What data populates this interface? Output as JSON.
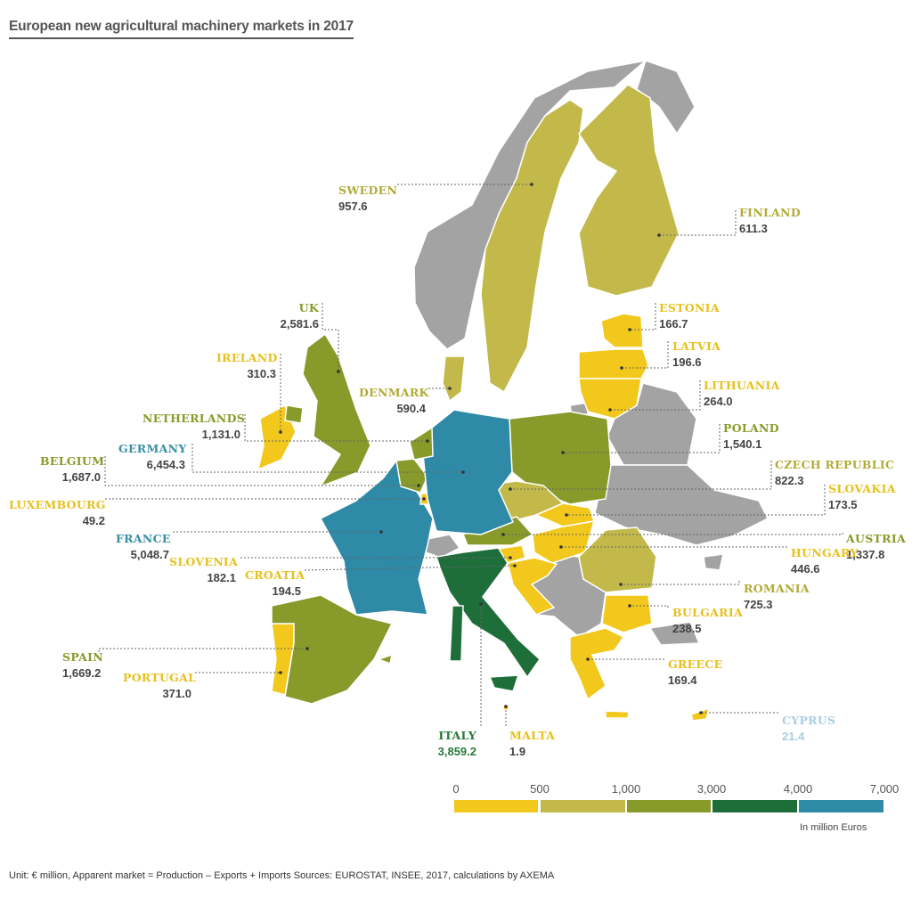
{
  "title": "European new agricultural machinery markets in 2017",
  "colors": {
    "0-500": "#f2c81c",
    "500-1000": "#c2b94a",
    "1000-3000": "#879a2a",
    "3000-4000": "#1e6e3a",
    "4000-7000": "#2e8aa6",
    "no-data": "#a3a3a3"
  },
  "countries": [
    {
      "name": "SWEDEN",
      "value": "957.6",
      "band": "500-1000"
    },
    {
      "name": "FINLAND",
      "value": "611.3",
      "band": "500-1000"
    },
    {
      "name": "ESTONIA",
      "value": "166.7",
      "band": "0-500"
    },
    {
      "name": "LATVIA",
      "value": "196.6",
      "band": "0-500"
    },
    {
      "name": "LITHUANIA",
      "value": "264.0",
      "band": "0-500"
    },
    {
      "name": "POLAND",
      "value": "1,540.1",
      "band": "1000-3000"
    },
    {
      "name": "CZECH REPUBLIC",
      "value": "822.3",
      "band": "500-1000"
    },
    {
      "name": "SLOVAKIA",
      "value": "173.5",
      "band": "0-500"
    },
    {
      "name": "AUSTRIA",
      "value": "1,337.8",
      "band": "1000-3000"
    },
    {
      "name": "HUNGARY",
      "value": "446.6",
      "band": "0-500"
    },
    {
      "name": "ROMANIA",
      "value": "725.3",
      "band": "500-1000"
    },
    {
      "name": "BULGARIA",
      "value": "238.5",
      "band": "0-500"
    },
    {
      "name": "GREECE",
      "value": "169.4",
      "band": "0-500"
    },
    {
      "name": "CYPRUS",
      "value": "21.4",
      "band": "0-500"
    },
    {
      "name": "MALTA",
      "value": "1.9",
      "band": "0-500"
    },
    {
      "name": "ITALY",
      "value": "3,859.2",
      "band": "3000-4000"
    },
    {
      "name": "PORTUGAL",
      "value": "371.0",
      "band": "0-500"
    },
    {
      "name": "SPAIN",
      "value": "1,669.2",
      "band": "1000-3000"
    },
    {
      "name": "CROATIA",
      "value": "194.5",
      "band": "0-500"
    },
    {
      "name": "SLOVENIA",
      "value": "182.1",
      "band": "0-500"
    },
    {
      "name": "FRANCE",
      "value": "5,048.7",
      "band": "4000-7000"
    },
    {
      "name": "LUXEMBOURG",
      "value": "49.2",
      "band": "0-500"
    },
    {
      "name": "BELGIUM",
      "value": "1,687.0",
      "band": "1000-3000"
    },
    {
      "name": "GERMANY",
      "value": "6,454.3",
      "band": "4000-7000"
    },
    {
      "name": "NETHERLANDS",
      "value": "1,131.0",
      "band": "1000-3000"
    },
    {
      "name": "IRELAND",
      "value": "310.3",
      "band": "0-500"
    },
    {
      "name": "UK",
      "value": "2,581.6",
      "band": "1000-3000"
    },
    {
      "name": "DENMARK",
      "value": "590.4",
      "band": "500-1000"
    }
  ],
  "legend": {
    "ticks": [
      "0",
      "500",
      "1,000",
      "3,000",
      "4,000",
      "7,000"
    ],
    "unit": "In million Euros"
  },
  "footer": "Unit: € million, Apparent market = Production – Exports + Imports   Sources: EUROSTAT, INSEE, 2017, calculations by AXEMA"
}
